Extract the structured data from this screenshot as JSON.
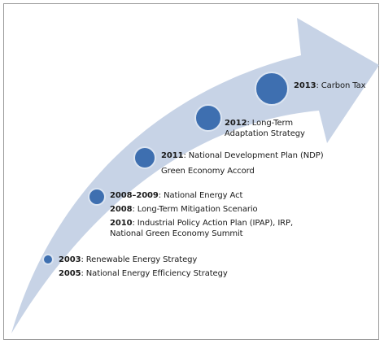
{
  "milestones": [
    {
      "year": "2013",
      "text": ": Carbon Tax"
    },
    {
      "year": "2012",
      "text": ": Long-Term",
      "text2": "Adaptation Strategy"
    },
    {
      "year": "2011",
      "text": ": National Development Plan (NDP)",
      "text2": "Green Economy Accord"
    },
    {
      "year": "2008–2009",
      "text": ": National Energy Act"
    },
    {
      "year": "2008",
      "text": ": Long-Term Mitigation Scenario"
    },
    {
      "year": "2010",
      "text": ": Industrial Policy Action Plan (IPAP), IRP,",
      "text2": "National Green Economy Summit"
    },
    {
      "year": "2003",
      "text": ": Renewable Energy Strategy"
    },
    {
      "year": "2005",
      "text": ": National Energy Efficiency Strategy"
    }
  ],
  "colors": {
    "arrow_fill": "#c7d3e6",
    "circle_fill": "#3e6fb0",
    "circle_stroke": "#dbe4f1",
    "frame_border": "#9a9a9a"
  }
}
